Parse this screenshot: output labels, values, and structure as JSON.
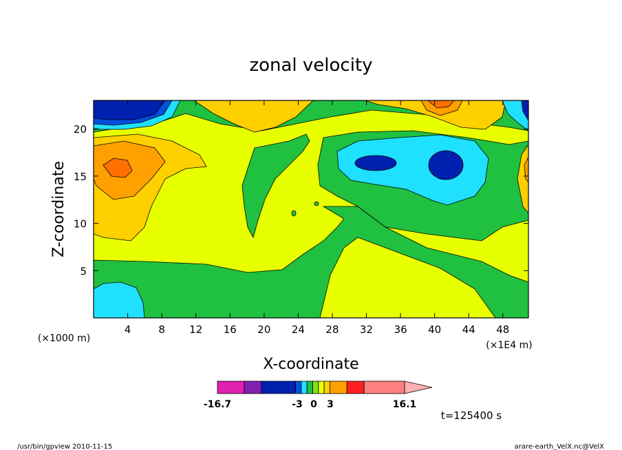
{
  "chart_data": {
    "type": "heatmap",
    "title": "zonal velocity",
    "xlabel": "X-coordinate",
    "ylabel": "Z-coordinate",
    "x_scale_note": "(×1E4 m)",
    "y_scale_note": "(×1000 m)",
    "x_ticks": [
      4,
      8,
      12,
      16,
      20,
      24,
      28,
      32,
      36,
      40,
      44,
      48
    ],
    "y_ticks": [
      5,
      10,
      15,
      20
    ],
    "xlim": [
      0,
      51
    ],
    "ylim": [
      0,
      23
    ],
    "colorbar": {
      "min_label": "-16.7",
      "max_label": "16.1",
      "labels": [
        "-3",
        "0",
        "3"
      ],
      "levels": [
        -16.7,
        -12,
        -9,
        -3,
        -2,
        -1,
        0,
        1,
        2,
        3,
        6,
        9,
        16.1
      ],
      "colors": [
        "#e020b0",
        "#8020b0",
        "#0020b0",
        "#0050e0",
        "#20e0ff",
        "#20c040",
        "#80e020",
        "#e8ff00",
        "#ffd000",
        "#ffa000",
        "#ff2020",
        "#ff8080",
        "#ffb0b0"
      ]
    },
    "regions": [
      {
        "name": "background",
        "level": 0.5
      },
      {
        "name": "top-left-negative",
        "x": [
          0,
          8
        ],
        "z": [
          20.5,
          23
        ],
        "level": -10
      },
      {
        "name": "left-positive-core",
        "x": [
          2,
          4
        ],
        "z": [
          15,
          17
        ],
        "level": 5
      },
      {
        "name": "center-right-negative",
        "x": [
          29,
          44
        ],
        "z": [
          13,
          19
        ],
        "level": -2
      },
      {
        "name": "top-right-positive-core",
        "x": [
          39,
          44
        ],
        "z": [
          21,
          23
        ],
        "level": 5
      },
      {
        "name": "bottom-left-negative",
        "x": [
          0,
          6
        ],
        "z": [
          0,
          4
        ],
        "level": -2
      }
    ]
  },
  "annotations": {
    "time": "t=125400 s",
    "footer_left": "/usr/bin/gpview  2010-11-15",
    "footer_right": "arare-earth_VelX.nc@VelX"
  }
}
